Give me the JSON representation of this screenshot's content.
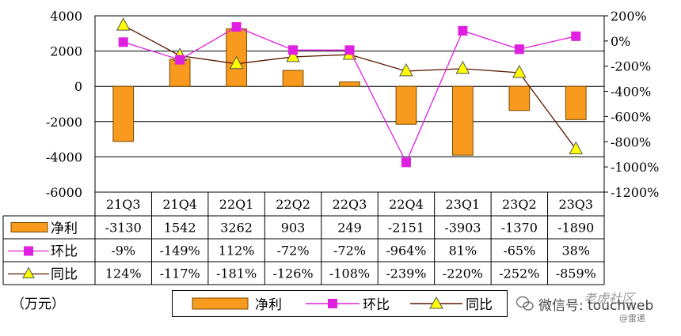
{
  "chart_data": {
    "type": "bar",
    "categories": [
      "21Q3",
      "21Q4",
      "22Q1",
      "22Q2",
      "22Q3",
      "22Q4",
      "23Q1",
      "23Q2",
      "23Q3"
    ],
    "left_axis": {
      "ticks": [
        "4000",
        "2000",
        "0",
        "-2000",
        "-4000",
        "-6000"
      ],
      "ylim": [
        -6000,
        4000
      ]
    },
    "right_axis": {
      "ticks": [
        "200%",
        "0%",
        "-200%",
        "-400%",
        "-600%",
        "-800%",
        "-1000%",
        "-1200%"
      ],
      "ylim": [
        -1200,
        200
      ]
    },
    "series": [
      {
        "name": "净利",
        "kind": "bar",
        "axis": "left",
        "values": [
          -3130,
          1542,
          3262,
          903,
          249,
          -2151,
          -3903,
          -1370,
          -1890
        ],
        "labels": [
          "-3130",
          "1542",
          "3262",
          "903",
          "249",
          "-2151",
          "-3903",
          "-1370",
          "-1890"
        ],
        "color": "#F79A1E"
      },
      {
        "name": "环比",
        "kind": "line",
        "axis": "right",
        "marker": "square",
        "values": [
          -9,
          -149,
          112,
          -72,
          -72,
          -964,
          81,
          -65,
          38
        ],
        "labels": [
          "-9%",
          "-149%",
          "112%",
          "-72%",
          "-72%",
          "-964%",
          "81%",
          "-65%",
          "38%"
        ],
        "color": "#E020E0"
      },
      {
        "name": "同比",
        "kind": "line",
        "axis": "right",
        "marker": "triangle",
        "values": [
          124,
          -117,
          -181,
          -126,
          -108,
          -239,
          -220,
          -252,
          -859
        ],
        "labels": [
          "124%",
          "-117%",
          "-181%",
          "-126%",
          "-108%",
          "-239%",
          "-220%",
          "-252%",
          "-859%"
        ],
        "color": "#5A1A00"
      }
    ],
    "grid": true,
    "legend_position": "bottom",
    "data_table": true
  },
  "unit_label": "（万元）",
  "watermark": {
    "text": "微信号: touchweb",
    "brand": "老虎社区",
    "sub": "@雷递"
  },
  "colors": {
    "bar_fill": "#F79A1E",
    "bar_edge": "#7A4A00",
    "hb": "#E020E0",
    "tb_line": "#5A1A00",
    "tb_marker": "#FFFF00"
  }
}
